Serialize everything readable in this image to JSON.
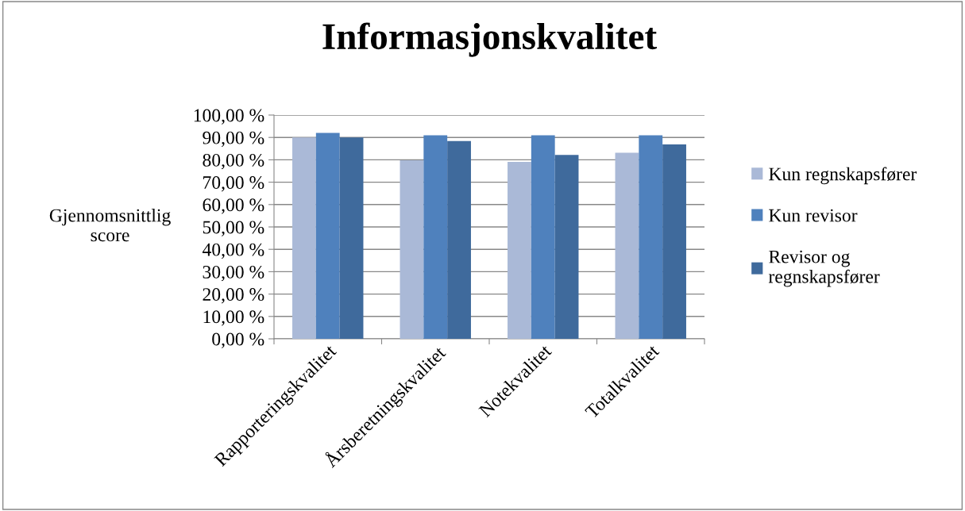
{
  "chart_data": {
    "type": "bar",
    "title": "Informasjonskvalitet",
    "ylabel": "Gjennomsnittlig\nscore",
    "categories": [
      "Rapporteringskvalitet",
      "Årsberetningskvalitet",
      "Notekvalitet",
      "Totalkvalitet"
    ],
    "series": [
      {
        "name": "Kun regnskapsfører",
        "color": "#aab9d7",
        "values": [
          90,
          79.8,
          79.1,
          83.2
        ]
      },
      {
        "name": "Kun revisor",
        "color": "#4f81bd",
        "values": [
          92,
          91,
          91,
          91
        ]
      },
      {
        "name": "Revisor og\nregnskapsfører",
        "color": "#3f6a9c",
        "values": [
          90,
          88.4,
          82.2,
          86.9
        ]
      }
    ],
    "ylim": [
      0,
      100
    ],
    "yticks": [
      {
        "value": 0,
        "label": "0,00 %"
      },
      {
        "value": 10,
        "label": "10,00 %"
      },
      {
        "value": 20,
        "label": "20,00 %"
      },
      {
        "value": 30,
        "label": "30,00 %"
      },
      {
        "value": 40,
        "label": "40,00 %"
      },
      {
        "value": 50,
        "label": "50,00 %"
      },
      {
        "value": 60,
        "label": "60,00 %"
      },
      {
        "value": 70,
        "label": "70,00 %"
      },
      {
        "value": 80,
        "label": "80,00 %"
      },
      {
        "value": 90,
        "label": "90,00 %"
      },
      {
        "value": 100,
        "label": "100,00 %"
      }
    ],
    "grid": "y",
    "legend": "right"
  }
}
